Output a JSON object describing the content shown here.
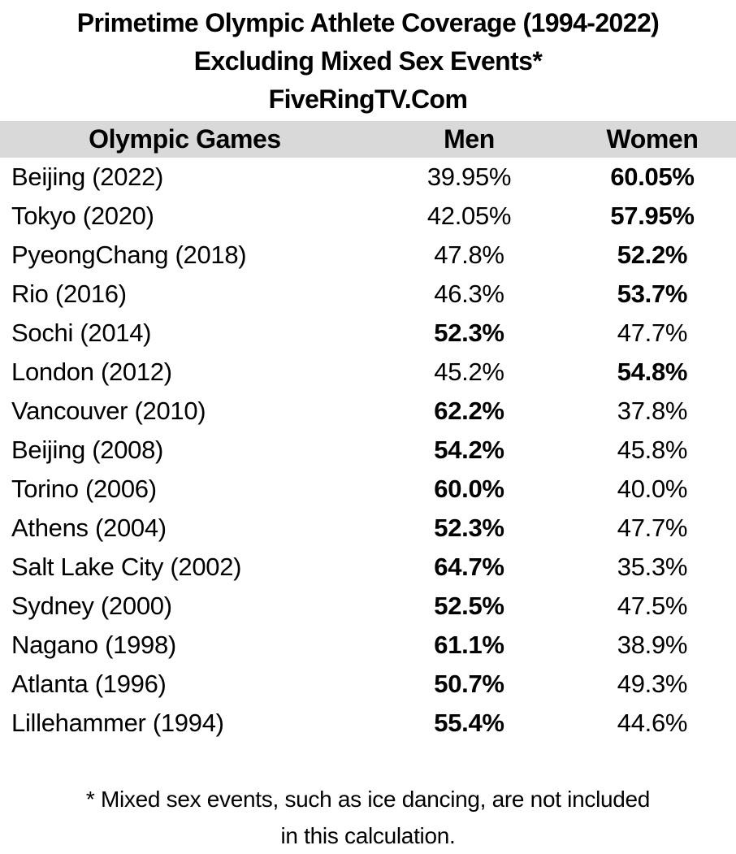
{
  "title": {
    "line1": "Primetime Olympic Athlete Coverage (1994-2022)",
    "line2": "Excluding Mixed Sex Events*",
    "line3": "FiveRingTV.Com"
  },
  "table": {
    "columns": [
      "Olympic Games",
      "Men",
      "Women"
    ],
    "rows": [
      {
        "games": "Beijing (2022)",
        "men": "39.95%",
        "women": "60.05%",
        "bold": "women"
      },
      {
        "games": "Tokyo (2020)",
        "men": "42.05%",
        "women": "57.95%",
        "bold": "women"
      },
      {
        "games": "PyeongChang (2018)",
        "men": "47.8%",
        "women": "52.2%",
        "bold": "women"
      },
      {
        "games": "Rio (2016)",
        "men": "46.3%",
        "women": "53.7%",
        "bold": "women"
      },
      {
        "games": "Sochi (2014)",
        "men": "52.3%",
        "women": "47.7%",
        "bold": "men"
      },
      {
        "games": "London (2012)",
        "men": "45.2%",
        "women": "54.8%",
        "bold": "women"
      },
      {
        "games": "Vancouver (2010)",
        "men": "62.2%",
        "women": "37.8%",
        "bold": "men"
      },
      {
        "games": "Beijing (2008)",
        "men": "54.2%",
        "women": "45.8%",
        "bold": "men"
      },
      {
        "games": "Torino (2006)",
        "men": "60.0%",
        "women": "40.0%",
        "bold": "men"
      },
      {
        "games": "Athens (2004)",
        "men": "52.3%",
        "women": "47.7%",
        "bold": "men"
      },
      {
        "games": "Salt Lake City (2002)",
        "men": "64.7%",
        "women": "35.3%",
        "bold": "men"
      },
      {
        "games": "Sydney (2000)",
        "men": "52.5%",
        "women": "47.5%",
        "bold": "men"
      },
      {
        "games": "Nagano (1998)",
        "men": "61.1%",
        "women": "38.9%",
        "bold": "men"
      },
      {
        "games": "Atlanta (1996)",
        "men": "50.7%",
        "women": "49.3%",
        "bold": "men"
      },
      {
        "games": "Lillehammer (1994)",
        "men": "55.4%",
        "women": "44.6%",
        "bold": "men"
      }
    ]
  },
  "footnote": {
    "line1": "* Mixed sex events, such as ice dancing, are not included",
    "line2": "in this calculation."
  },
  "colors": {
    "header_bg": "#d9d9d9",
    "text": "#000000",
    "background": "#ffffff"
  },
  "chart_data": {
    "type": "table",
    "title": "Primetime Olympic Athlete Coverage (1994-2022) Excluding Mixed Sex Events*",
    "source_label": "FiveRingTV.Com",
    "categories": [
      "Beijing (2022)",
      "Tokyo (2020)",
      "PyeongChang (2018)",
      "Rio (2016)",
      "Sochi (2014)",
      "London (2012)",
      "Vancouver (2010)",
      "Beijing (2008)",
      "Torino (2006)",
      "Athens (2004)",
      "Salt Lake City (2002)",
      "Sydney (2000)",
      "Nagano (1998)",
      "Atlanta (1996)",
      "Lillehammer (1994)"
    ],
    "series": [
      {
        "name": "Men",
        "values": [
          39.95,
          42.05,
          47.8,
          46.3,
          52.3,
          45.2,
          62.2,
          54.2,
          60.0,
          52.3,
          64.7,
          52.5,
          61.1,
          50.7,
          55.4
        ]
      },
      {
        "name": "Women",
        "values": [
          60.05,
          57.95,
          52.2,
          53.7,
          47.7,
          54.8,
          37.8,
          45.8,
          40.0,
          47.7,
          35.3,
          47.5,
          38.9,
          49.3,
          44.6
        ]
      }
    ],
    "value_unit": "%",
    "note": "* Mixed sex events, such as ice dancing, are not included in this calculation.",
    "emphasis": "larger value per row rendered bold"
  }
}
